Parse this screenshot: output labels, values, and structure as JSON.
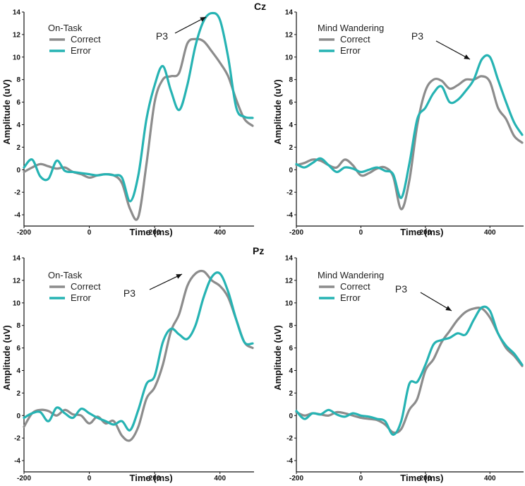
{
  "figure": {
    "electrodes": [
      "Cz",
      "Pz"
    ]
  },
  "chart_data": [
    {
      "type": "line",
      "electrode": "Cz",
      "condition": "On-Task",
      "annotation": "P3",
      "xlabel": "Time (ms)",
      "ylabel": "Amplitude (uV)",
      "xlim": [
        -200,
        500
      ],
      "ylim": [
        -5,
        14
      ],
      "xticks": [
        -200,
        0,
        200,
        400
      ],
      "yticks": [
        -4,
        -2,
        0,
        2,
        4,
        6,
        8,
        10,
        12,
        14
      ],
      "legend": "top-left",
      "x": [
        -200,
        -175,
        -150,
        -125,
        -100,
        -75,
        -50,
        -25,
        0,
        25,
        50,
        75,
        100,
        125,
        150,
        175,
        200,
        225,
        250,
        275,
        300,
        325,
        350,
        375,
        400,
        425,
        450,
        475,
        500
      ],
      "series": [
        {
          "name": "Correct",
          "color": "#8c8c8c",
          "values": [
            -0.2,
            0.2,
            0.5,
            0.3,
            0.1,
            0.2,
            -0.2,
            -0.4,
            -0.7,
            -0.5,
            -0.4,
            -0.5,
            -1.2,
            -3.5,
            -4.2,
            0.5,
            6.0,
            8.0,
            8.3,
            8.6,
            11.2,
            11.6,
            11.4,
            10.5,
            9.5,
            8.3,
            6.2,
            4.5,
            3.9
          ]
        },
        {
          "name": "Error",
          "color": "#26b3b3",
          "values": [
            0.2,
            0.9,
            -0.6,
            -0.8,
            0.8,
            -0.1,
            -0.2,
            -0.3,
            -0.4,
            -0.5,
            -0.4,
            -0.5,
            -0.7,
            -2.8,
            -0.5,
            4.5,
            7.5,
            9.2,
            7.0,
            5.3,
            7.5,
            11.0,
            13.2,
            13.9,
            13.3,
            10.0,
            5.5,
            4.7,
            4.6
          ]
        }
      ]
    },
    {
      "type": "line",
      "electrode": "Cz",
      "condition": "Mind Wandering",
      "annotation": "P3",
      "xlabel": "Time (ms)",
      "ylabel": "Amplitude (uV)",
      "xlim": [
        -200,
        500
      ],
      "ylim": [
        -5,
        14
      ],
      "xticks": [
        -200,
        0,
        200,
        400
      ],
      "yticks": [
        -4,
        -2,
        0,
        2,
        4,
        6,
        8,
        10,
        12,
        14
      ],
      "legend": "top-left",
      "x": [
        -200,
        -175,
        -150,
        -125,
        -100,
        -75,
        -50,
        -25,
        0,
        25,
        50,
        75,
        100,
        125,
        150,
        175,
        200,
        225,
        250,
        275,
        300,
        325,
        350,
        375,
        400,
        425,
        450,
        475,
        500
      ],
      "series": [
        {
          "name": "Correct",
          "color": "#8c8c8c",
          "values": [
            0.4,
            0.6,
            0.9,
            0.8,
            0.4,
            0.2,
            0.9,
            0.4,
            -0.5,
            -0.3,
            0.1,
            0.2,
            -0.6,
            -3.5,
            -1.0,
            4.0,
            7.0,
            8.0,
            7.9,
            7.2,
            7.5,
            8.0,
            8.0,
            8.3,
            7.8,
            5.5,
            4.5,
            3.0,
            2.4
          ]
        },
        {
          "name": "Error",
          "color": "#26b3b3",
          "values": [
            0.5,
            0.2,
            0.6,
            1.0,
            0.4,
            -0.2,
            0.2,
            0.1,
            -0.2,
            0.0,
            0.2,
            -0.1,
            -0.4,
            -2.5,
            0.5,
            4.5,
            5.5,
            6.8,
            7.4,
            6.0,
            6.2,
            7.0,
            8.0,
            9.8,
            10.0,
            8.0,
            6.0,
            4.2,
            3.1
          ]
        }
      ]
    },
    {
      "type": "line",
      "electrode": "Pz",
      "condition": "On-Task",
      "annotation": "P3",
      "xlabel": "Time (ms)",
      "ylabel": "Amplitude (uV)",
      "xlim": [
        -200,
        500
      ],
      "ylim": [
        -5,
        14
      ],
      "xticks": [
        -200,
        0,
        200,
        400
      ],
      "yticks": [
        -4,
        -2,
        0,
        2,
        4,
        6,
        8,
        10,
        12,
        14
      ],
      "legend": "top-left",
      "x": [
        -200,
        -175,
        -150,
        -125,
        -100,
        -75,
        -50,
        -25,
        0,
        25,
        50,
        75,
        100,
        125,
        150,
        175,
        200,
        225,
        250,
        275,
        300,
        325,
        350,
        375,
        400,
        425,
        450,
        475,
        500
      ],
      "series": [
        {
          "name": "Correct",
          "color": "#8c8c8c",
          "values": [
            -1.0,
            0.2,
            0.5,
            0.4,
            0.0,
            0.5,
            0.1,
            0.0,
            -0.7,
            -0.1,
            -0.7,
            -0.5,
            -1.8,
            -2.2,
            -1.0,
            1.5,
            2.5,
            4.5,
            7.5,
            9.0,
            11.5,
            12.6,
            12.8,
            12.0,
            11.5,
            10.5,
            8.5,
            6.5,
            6.0
          ]
        },
        {
          "name": "Error",
          "color": "#26b3b3",
          "values": [
            -0.2,
            0.2,
            0.3,
            -0.5,
            0.7,
            0.2,
            -0.2,
            0.6,
            0.2,
            -0.2,
            -0.5,
            -0.8,
            -0.5,
            -1.3,
            0.5,
            2.8,
            3.5,
            6.5,
            7.7,
            7.2,
            6.8,
            8.0,
            10.5,
            12.3,
            12.6,
            11.0,
            8.5,
            6.5,
            6.4
          ]
        }
      ]
    },
    {
      "type": "line",
      "electrode": "Pz",
      "condition": "Mind Wandering",
      "annotation": "P3",
      "xlabel": "Time (ms)",
      "ylabel": "Amplitude (uV)",
      "xlim": [
        -200,
        500
      ],
      "ylim": [
        -5,
        14
      ],
      "xticks": [
        -200,
        0,
        200,
        400
      ],
      "yticks": [
        -4,
        -2,
        0,
        2,
        4,
        6,
        8,
        10,
        12,
        14
      ],
      "legend": "top-left",
      "x": [
        -200,
        -175,
        -150,
        -125,
        -100,
        -75,
        -50,
        -25,
        0,
        25,
        50,
        75,
        100,
        125,
        150,
        175,
        200,
        225,
        250,
        275,
        300,
        325,
        350,
        375,
        400,
        425,
        450,
        475,
        500
      ],
      "series": [
        {
          "name": "Correct",
          "color": "#8c8c8c",
          "values": [
            0.3,
            0.0,
            0.2,
            0.1,
            0.0,
            0.3,
            0.2,
            0.0,
            -0.2,
            -0.3,
            -0.4,
            -0.8,
            -1.5,
            -1.2,
            0.5,
            1.5,
            4.0,
            5.0,
            6.5,
            7.5,
            8.5,
            9.2,
            9.5,
            9.5,
            8.7,
            7.3,
            6.0,
            5.3,
            4.4
          ]
        },
        {
          "name": "Error",
          "color": "#26b3b3",
          "values": [
            0.4,
            -0.3,
            0.2,
            0.1,
            0.5,
            0.1,
            -0.1,
            0.2,
            0.0,
            -0.1,
            -0.3,
            -0.5,
            -1.7,
            -0.5,
            2.8,
            3.0,
            4.5,
            6.3,
            6.7,
            6.9,
            7.3,
            7.2,
            8.5,
            9.6,
            9.3,
            7.3,
            6.2,
            5.5,
            4.5
          ]
        }
      ]
    }
  ]
}
